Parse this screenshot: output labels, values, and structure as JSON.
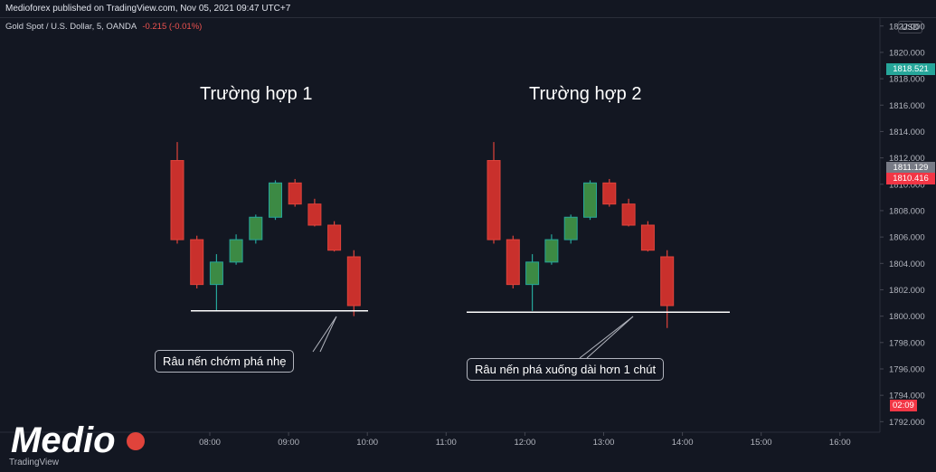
{
  "header": {
    "published_by": "Medioforex published on TradingView.com, Nov 05, 2021 09:47 UTC+7",
    "symbol": "Gold Spot / U.S. Dollar, 5, OANDA",
    "change": "-0.215 (-0.01%)",
    "currency": "USD"
  },
  "annotations": {
    "case1_title": "Trường hợp 1",
    "case2_title": "Trường hợp 2",
    "case1_callout": "Râu nến chớm phá nhẹ",
    "case2_callout": "Râu nến phá xuống dài hơn 1 chút"
  },
  "price_tags": {
    "current": "1818.521",
    "gray": "1811.129",
    "red": "1810.416",
    "countdown": "02:09"
  },
  "colors": {
    "background": "#131722",
    "bull": "#26a69a",
    "bull_fill": "#3c8a44",
    "bear": "#e0433b",
    "bear_fill": "#c9302c",
    "current_price": "#26a69a",
    "gray_tag": "#787b86",
    "red_tag": "#f23645"
  },
  "branding": {
    "logo_text": "Medio",
    "credit": "TradingView"
  },
  "chart_data": {
    "type": "candlestick",
    "y_axis": {
      "ylim": [
        1791.2,
        1822.6
      ],
      "ticks": [
        "1822.000",
        "1820.000",
        "1818.000",
        "1816.000",
        "1814.000",
        "1812.000",
        "1810.000",
        "1808.000",
        "1806.000",
        "1804.000",
        "1802.000",
        "1800.000",
        "1798.000",
        "1796.000",
        "1794.000",
        "1792.000"
      ]
    },
    "x_axis": {
      "ticks": [
        "08:00",
        "09:00",
        "10:00",
        "11:00",
        "12:00",
        "13:00",
        "14:00",
        "15:00",
        "16:00"
      ]
    },
    "series": [
      {
        "candles": [
          {
            "o": 1811.8,
            "h": 1813.2,
            "l": 1805.5,
            "c": 1805.8
          },
          {
            "o": 1805.8,
            "h": 1806.1,
            "l": 1802.1,
            "c": 1802.4
          },
          {
            "o": 1802.4,
            "h": 1804.7,
            "l": 1800.4,
            "c": 1804.1
          },
          {
            "o": 1804.1,
            "h": 1806.2,
            "l": 1803.9,
            "c": 1805.8
          },
          {
            "o": 1805.8,
            "h": 1807.7,
            "l": 1805.5,
            "c": 1807.5
          },
          {
            "o": 1807.5,
            "h": 1810.3,
            "l": 1807.3,
            "c": 1810.1
          },
          {
            "o": 1810.1,
            "h": 1810.4,
            "l": 1808.3,
            "c": 1808.5
          },
          {
            "o": 1808.5,
            "h": 1808.9,
            "l": 1806.8,
            "c": 1806.9
          },
          {
            "o": 1806.9,
            "h": 1807.2,
            "l": 1804.9,
            "c": 1805.0
          },
          {
            "o": 1804.5,
            "h": 1805.0,
            "l": 1800.0,
            "c": 1800.8
          }
        ],
        "support_level": 1800.4
      },
      {
        "candles": [
          {
            "o": 1811.8,
            "h": 1813.2,
            "l": 1805.5,
            "c": 1805.8
          },
          {
            "o": 1805.8,
            "h": 1806.1,
            "l": 1802.1,
            "c": 1802.4
          },
          {
            "o": 1802.4,
            "h": 1804.7,
            "l": 1800.4,
            "c": 1804.1
          },
          {
            "o": 1804.1,
            "h": 1806.2,
            "l": 1803.9,
            "c": 1805.8
          },
          {
            "o": 1805.8,
            "h": 1807.7,
            "l": 1805.5,
            "c": 1807.5
          },
          {
            "o": 1807.5,
            "h": 1810.3,
            "l": 1807.3,
            "c": 1810.1
          },
          {
            "o": 1810.1,
            "h": 1810.4,
            "l": 1808.3,
            "c": 1808.5
          },
          {
            "o": 1808.5,
            "h": 1808.9,
            "l": 1806.8,
            "c": 1806.9
          },
          {
            "o": 1806.9,
            "h": 1807.2,
            "l": 1804.9,
            "c": 1805.0
          },
          {
            "o": 1804.5,
            "h": 1805.0,
            "l": 1799.1,
            "c": 1800.8
          }
        ],
        "support_level": 1800.3
      }
    ]
  }
}
